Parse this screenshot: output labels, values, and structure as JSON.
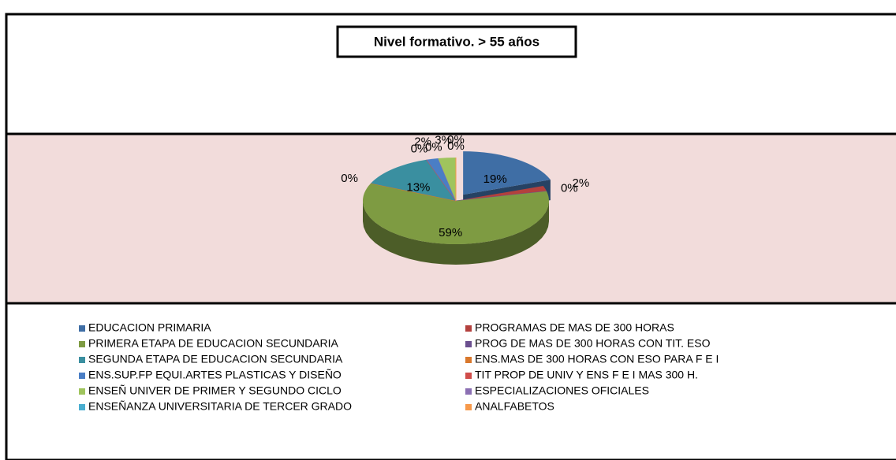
{
  "chart_data": {
    "type": "pie3d",
    "title": "Nivel formativo. > 55 años",
    "categories": [
      "EDUCACION PRIMARIA",
      "PROGRAMAS DE MAS DE 300 HORAS",
      "PRIMERA ETAPA DE EDUCACION SECUNDARIA",
      "PROG DE MAS DE 300 HORAS CON TIT. ESO",
      "SEGUNDA ETAPA DE EDUCACION SECUNDARIA",
      "ENS.MAS DE 300 HORAS CON ESO PARA F E I",
      "ENS.SUP.FP EQUI.ARTES PLASTICAS Y DISEÑO",
      "TIT PROP DE UNIV Y ENS F E I MAS 300 H.",
      "ENSEÑ UNIVER DE PRIMER Y SEGUNDO CICLO",
      "ESPECIALIZACIONES OFICIALES",
      "ENSEÑANZA UNIVERSITARIA DE TERCER GRADO",
      "ANALFABETOS"
    ],
    "slice_order": [
      0,
      1,
      3,
      2,
      5,
      4,
      7,
      6,
      9,
      8,
      10,
      11
    ],
    "values": [
      19,
      2,
      59,
      0,
      13,
      0,
      2,
      0,
      3,
      0,
      0,
      0
    ],
    "value_labels": [
      "19%",
      "2%",
      "59%",
      "0%",
      "13%",
      "0%",
      "2%",
      "0%",
      "3%",
      "0%",
      "0%",
      "0%"
    ],
    "colors": [
      "#3f6ea5",
      "#b3403d",
      "#7e9b42",
      "#6b4f8f",
      "#3a8fa0",
      "#d9782c",
      "#4a7ec5",
      "#d04d4a",
      "#9fc45d",
      "#8b6fb3",
      "#4aaed0",
      "#f7994a"
    ]
  }
}
